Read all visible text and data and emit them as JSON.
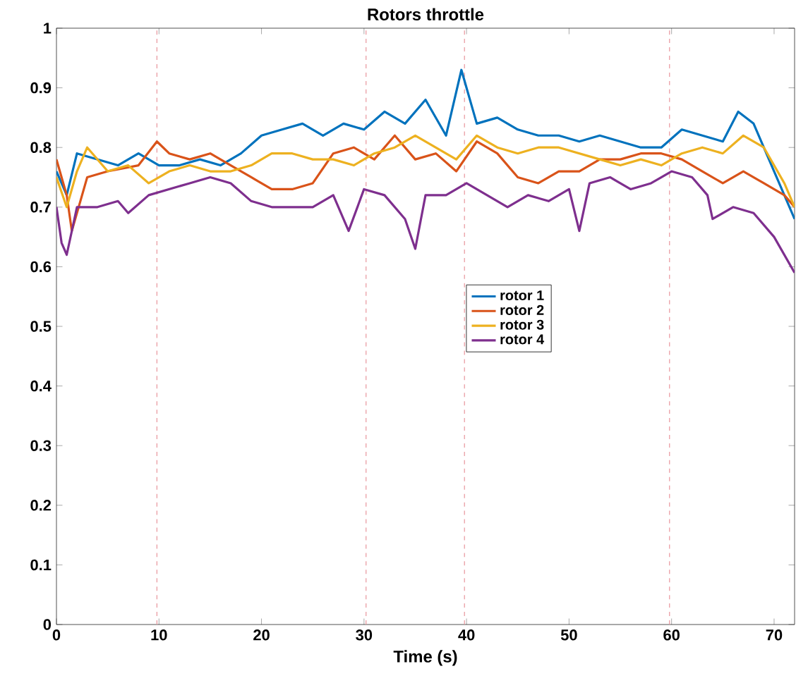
{
  "chart_data": {
    "type": "line",
    "title": "Rotors throttle",
    "xlabel": "Time (s)",
    "xlim": [
      0,
      72
    ],
    "ylim": [
      0,
      1
    ],
    "xticks": [
      0,
      10,
      20,
      30,
      40,
      50,
      60,
      70
    ],
    "yticks": [
      0,
      0.1,
      0.2,
      0.3,
      0.4,
      0.5,
      0.6,
      0.7,
      0.8,
      0.9,
      1
    ],
    "legend": "center",
    "grid": false,
    "marker": "none",
    "line_style": "solid",
    "ref_lines": [
      {
        "axis": "x",
        "value": 9.8,
        "color": "#e8959c",
        "line_style": "dashed"
      },
      {
        "axis": "x",
        "value": 30.2,
        "color": "#e8959c",
        "line_style": "dashed"
      },
      {
        "axis": "x",
        "value": 39.8,
        "color": "#e8959c",
        "line_style": "dashed"
      },
      {
        "axis": "x",
        "value": 59.8,
        "color": "#e8959c",
        "line_style": "dashed"
      }
    ],
    "series": [
      {
        "name": "rotor 1",
        "color": "#0072bd",
        "x": [
          0,
          1,
          2,
          4,
          6,
          8,
          10,
          12,
          14,
          16,
          18,
          20,
          22,
          24,
          26,
          28,
          30,
          32,
          34,
          36,
          38,
          39.5,
          41,
          43,
          45,
          47,
          49,
          51,
          53,
          55,
          57,
          59,
          61,
          63,
          65,
          66.5,
          68,
          70,
          72
        ],
        "values": [
          0.76,
          0.72,
          0.79,
          0.78,
          0.77,
          0.79,
          0.77,
          0.77,
          0.78,
          0.77,
          0.79,
          0.82,
          0.83,
          0.84,
          0.82,
          0.84,
          0.83,
          0.86,
          0.84,
          0.88,
          0.82,
          0.93,
          0.84,
          0.85,
          0.83,
          0.82,
          0.82,
          0.81,
          0.82,
          0.81,
          0.8,
          0.8,
          0.83,
          0.82,
          0.81,
          0.86,
          0.84,
          0.76,
          0.68
        ]
      },
      {
        "name": "rotor 2",
        "color": "#d95319",
        "x": [
          0,
          1,
          1.5,
          3,
          5,
          8,
          9.8,
          11,
          13,
          15,
          17,
          19,
          21,
          23,
          25,
          27,
          29,
          31,
          33,
          35,
          37,
          39,
          41,
          43,
          45,
          47,
          49,
          51,
          53,
          55,
          57,
          59,
          61,
          63,
          65,
          67,
          69,
          71,
          72
        ],
        "values": [
          0.78,
          0.72,
          0.66,
          0.75,
          0.76,
          0.77,
          0.81,
          0.79,
          0.78,
          0.79,
          0.77,
          0.75,
          0.73,
          0.73,
          0.74,
          0.79,
          0.8,
          0.78,
          0.82,
          0.78,
          0.79,
          0.76,
          0.81,
          0.79,
          0.75,
          0.74,
          0.76,
          0.76,
          0.78,
          0.78,
          0.79,
          0.79,
          0.78,
          0.76,
          0.74,
          0.76,
          0.74,
          0.72,
          0.7
        ]
      },
      {
        "name": "rotor 3",
        "color": "#edb120",
        "x": [
          0,
          1,
          2,
          3,
          5,
          7,
          9,
          11,
          13,
          15,
          17,
          19,
          21,
          23,
          25,
          27,
          29,
          31,
          33,
          35,
          37,
          39,
          41,
          43,
          45,
          47,
          49,
          51,
          53,
          55,
          57,
          59,
          61,
          63,
          65,
          67,
          69,
          71,
          72
        ],
        "values": [
          0.75,
          0.7,
          0.76,
          0.8,
          0.76,
          0.77,
          0.74,
          0.76,
          0.77,
          0.76,
          0.76,
          0.77,
          0.79,
          0.79,
          0.78,
          0.78,
          0.77,
          0.79,
          0.8,
          0.82,
          0.8,
          0.78,
          0.82,
          0.8,
          0.79,
          0.8,
          0.8,
          0.79,
          0.78,
          0.77,
          0.78,
          0.77,
          0.79,
          0.8,
          0.79,
          0.82,
          0.8,
          0.74,
          0.7
        ]
      },
      {
        "name": "rotor 4",
        "color": "#7e2f8e",
        "x": [
          0,
          0.5,
          1,
          2,
          4,
          6,
          7,
          9,
          11,
          13,
          15,
          17,
          19,
          21,
          23,
          25,
          27,
          28.5,
          30,
          32,
          34,
          35,
          36,
          38,
          40,
          42,
          44,
          46,
          48,
          50,
          51,
          52,
          54,
          56,
          58,
          60,
          62,
          63.5,
          64,
          66,
          68,
          70,
          72
        ],
        "values": [
          0.7,
          0.64,
          0.62,
          0.7,
          0.7,
          0.71,
          0.69,
          0.72,
          0.73,
          0.74,
          0.75,
          0.74,
          0.71,
          0.7,
          0.7,
          0.7,
          0.72,
          0.66,
          0.73,
          0.72,
          0.68,
          0.63,
          0.72,
          0.72,
          0.74,
          0.72,
          0.7,
          0.72,
          0.71,
          0.73,
          0.66,
          0.74,
          0.75,
          0.73,
          0.74,
          0.76,
          0.75,
          0.72,
          0.68,
          0.7,
          0.69,
          0.65,
          0.59
        ]
      }
    ]
  }
}
